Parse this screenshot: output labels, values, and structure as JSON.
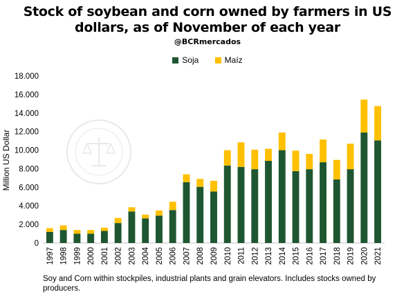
{
  "chart_data": {
    "type": "bar",
    "stacked": true,
    "title": "Stock of soybean and corn owned by farmers in US dollars, as of November of each year",
    "subtitle": "@BCRmercados",
    "xlabel": "",
    "ylabel": "Million US Dollar",
    "ylim": [
      0,
      18000
    ],
    "yticks": [
      "0",
      "2.000",
      "4.000",
      "6.000",
      "8.000",
      "10.000",
      "12.000",
      "14.000",
      "16.000",
      "18.000"
    ],
    "legend_position": "top",
    "categories": [
      "1997",
      "1998",
      "1999",
      "2000",
      "2001",
      "2002",
      "2003",
      "2004",
      "2005",
      "2006",
      "2007",
      "2008",
      "2009",
      "2010",
      "2011",
      "2012",
      "2013",
      "2014",
      "2015",
      "2016",
      "2017",
      "2018",
      "2019",
      "2020",
      "2021"
    ],
    "series": [
      {
        "name": "Soja",
        "color": "#1e5631",
        "values": [
          1200,
          1400,
          1000,
          1000,
          1300,
          2150,
          3400,
          2650,
          2950,
          3550,
          6550,
          6050,
          5550,
          8350,
          8200,
          7950,
          8850,
          10000,
          7750,
          7950,
          8700,
          6850,
          7950,
          11900,
          11050
        ]
      },
      {
        "name": "Maíz",
        "color": "#ffc000",
        "values": [
          400,
          500,
          400,
          400,
          350,
          550,
          450,
          400,
          550,
          900,
          850,
          850,
          1150,
          1650,
          2650,
          2100,
          1300,
          1900,
          2200,
          1650,
          2450,
          2100,
          2750,
          3550,
          3700
        ]
      }
    ],
    "grid": false,
    "footnote": "Soy and Corn within stockpiles, industrial plants and grain elevators. Includes stocks owned by producers."
  }
}
